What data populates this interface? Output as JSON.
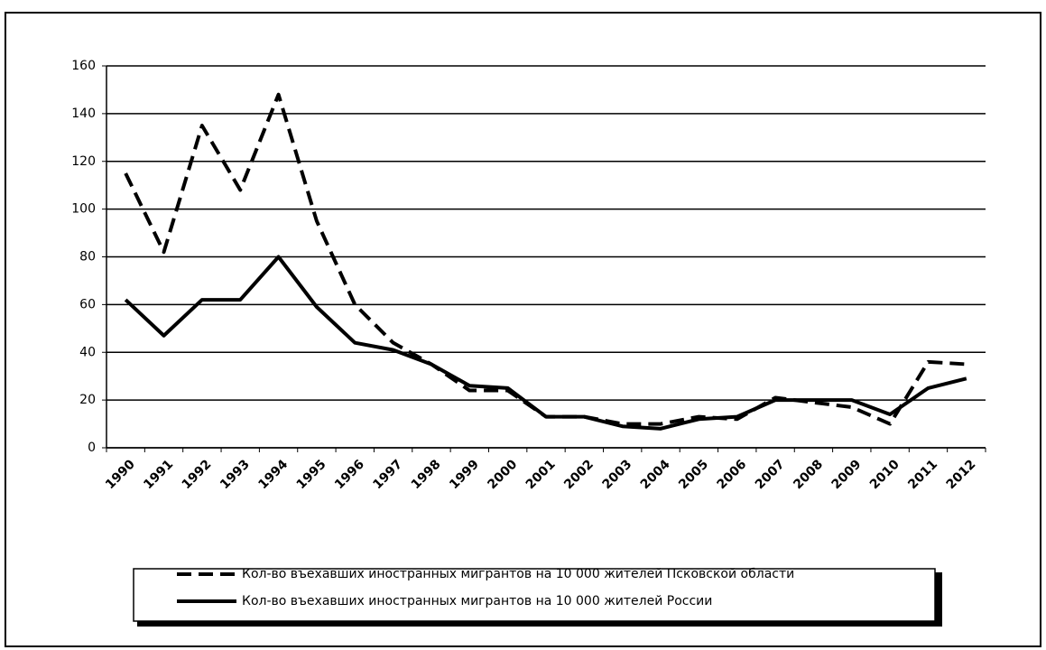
{
  "chart_data": {
    "type": "line",
    "categories": [
      "1990",
      "1991",
      "1992",
      "1993",
      "1994",
      "1995",
      "1996",
      "1997",
      "1998",
      "1999",
      "2000",
      "2001",
      "2002",
      "2003",
      "2004",
      "2005",
      "2006",
      "2007",
      "2008",
      "2009",
      "2010",
      "2011",
      "2012"
    ],
    "series": [
      {
        "name": "Кол-во въехавших иностранных мигрантов на 10 000 жителей Псковской области",
        "color": "#000000",
        "dash": true,
        "values": [
          115,
          82,
          135,
          108,
          148,
          95,
          60,
          44,
          35,
          24,
          24,
          13,
          13,
          10,
          10,
          13,
          12,
          21,
          19,
          17,
          10,
          36,
          35
        ]
      },
      {
        "name": "Кол-во въехавших иностранных мигрантов на 10 000 жителей России",
        "color": "#000000",
        "dash": false,
        "values": [
          62,
          47,
          62,
          62,
          80,
          59,
          44,
          41,
          35,
          26,
          25,
          13,
          13,
          9,
          8,
          12,
          13,
          20,
          20,
          20,
          14,
          25,
          29
        ]
      }
    ],
    "ylim": [
      0,
      160
    ],
    "yticks": [
      0,
      20,
      40,
      60,
      80,
      100,
      120,
      140,
      160
    ],
    "grid": true,
    "legend": "bottom"
  }
}
